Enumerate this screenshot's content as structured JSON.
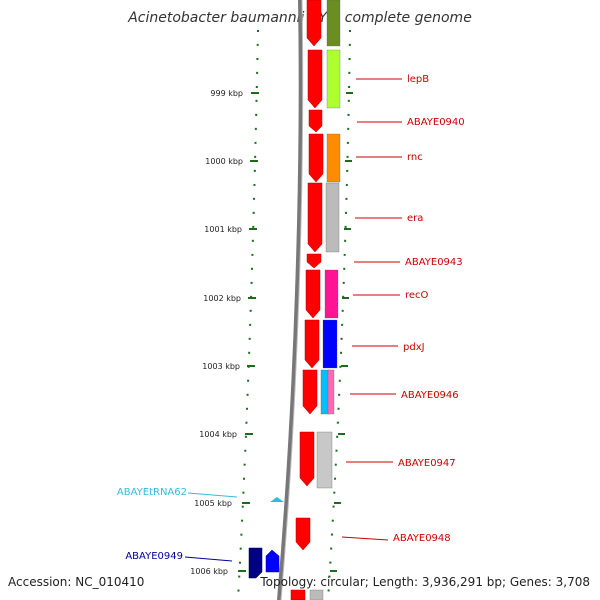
{
  "title": "Acinetobacter baumannii AYE, complete genome",
  "accession": "Accession: NC_010410",
  "summary": "Topology: circular; Length: 3,936,291 bp; Genes: 3,708",
  "colors": {
    "tick": "#1a6e1a",
    "forward_gene": "#ff0000",
    "red_label": "#cc0000",
    "trna_label": "#33bbdd",
    "navy_label": "#000099",
    "backbone": "#888888"
  },
  "scale_labels": [
    {
      "kbp": 999,
      "label": "999 kbp"
    },
    {
      "kbp": 1000,
      "label": "1000 kbp"
    },
    {
      "kbp": 1001,
      "label": "1001 kbp"
    },
    {
      "kbp": 1002,
      "label": "1002 kbp"
    },
    {
      "kbp": 1003,
      "label": "1003 kbp"
    },
    {
      "kbp": 1004,
      "label": "1004 kbp"
    },
    {
      "kbp": 1005,
      "label": "1005 kbp"
    },
    {
      "kbp": 1006,
      "label": "1006 kbp"
    }
  ],
  "gene_labels": [
    {
      "name": "lepB",
      "color": "red"
    },
    {
      "name": "ABAYE0940",
      "color": "red"
    },
    {
      "name": "rnc",
      "color": "red"
    },
    {
      "name": "era",
      "color": "red"
    },
    {
      "name": "ABAYE0943",
      "color": "red"
    },
    {
      "name": "recO",
      "color": "red"
    },
    {
      "name": "pdxJ",
      "color": "red"
    },
    {
      "name": "ABAYE0946",
      "color": "red"
    },
    {
      "name": "ABAYE0947",
      "color": "red"
    },
    {
      "name": "ABAYE0948",
      "color": "red"
    },
    {
      "name": "ABAYEtRNA62",
      "color": "trna"
    },
    {
      "name": "ABAYE0949",
      "color": "navy"
    }
  ],
  "category_colors": [
    "#6b8e23",
    "#adff2f",
    "#ff8c00",
    "#bbbbbb",
    "#ff1493",
    "#0000ff",
    "#00bfff",
    "#ff69b4",
    "#000080"
  ]
}
